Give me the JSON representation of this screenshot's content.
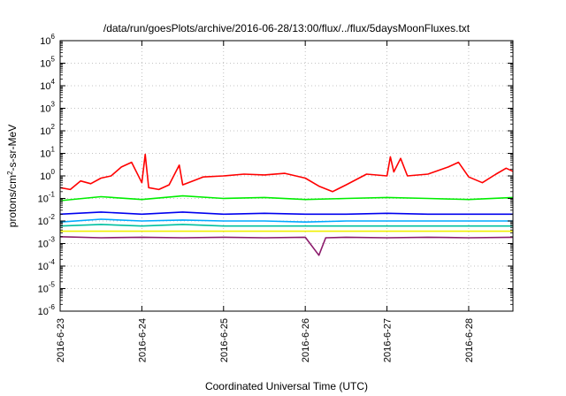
{
  "chart_data": {
    "type": "line",
    "title": "/data/run/goesPlots/archive/2016-06-28/13:00/flux/../flux/5daysMoonFluxes.txt",
    "xlabel": "Coordinated Universal Time (UTC)",
    "ylabel": {
      "prefix": "protons/cm",
      "sup": "2",
      "suffix": "-s-sr-MeV"
    },
    "yscale": "log",
    "ylim_exp": [
      -6,
      6
    ],
    "y_tick_labels": [
      {
        "base": "10",
        "exp": "-6"
      },
      {
        "base": "10",
        "exp": "-5"
      },
      {
        "base": "10",
        "exp": "-4"
      },
      {
        "base": "10",
        "exp": "-3"
      },
      {
        "base": "10",
        "exp": "-2"
      },
      {
        "base": "10",
        "exp": "-1"
      },
      {
        "base": "10",
        "exp": "0"
      },
      {
        "base": "10",
        "exp": "1"
      },
      {
        "base": "10",
        "exp": "2"
      },
      {
        "base": "10",
        "exp": "3"
      },
      {
        "base": "10",
        "exp": "4"
      },
      {
        "base": "10",
        "exp": "5"
      },
      {
        "base": "10",
        "exp": "6"
      }
    ],
    "xlim": [
      "2016-06-23T00:00",
      "2016-06-28T13:00"
    ],
    "x_ticks": [
      "2016-6-23",
      "2016-6-24",
      "2016-6-25",
      "2016-6-26",
      "2016-6-27",
      "2016-6-28"
    ],
    "grid": true,
    "legend": "none",
    "series": [
      {
        "color": "#ff0000",
        "points": [
          [
            "2016-06-23T00:00",
            0.3
          ],
          [
            "2016-06-23T03:00",
            0.25
          ],
          [
            "2016-06-23T06:00",
            0.6
          ],
          [
            "2016-06-23T09:00",
            0.45
          ],
          [
            "2016-06-23T12:00",
            0.8
          ],
          [
            "2016-06-23T15:00",
            1.0
          ],
          [
            "2016-06-23T18:00",
            2.5
          ],
          [
            "2016-06-23T21:00",
            4.0
          ],
          [
            "2016-06-24T00:00",
            0.5
          ],
          [
            "2016-06-24T01:00",
            9.0
          ],
          [
            "2016-06-24T02:00",
            0.3
          ],
          [
            "2016-06-24T05:00",
            0.25
          ],
          [
            "2016-06-24T08:00",
            0.4
          ],
          [
            "2016-06-24T11:00",
            3.0
          ],
          [
            "2016-06-24T12:00",
            0.4
          ],
          [
            "2016-06-24T15:00",
            0.6
          ],
          [
            "2016-06-24T18:00",
            0.9
          ],
          [
            "2016-06-25T00:00",
            1.0
          ],
          [
            "2016-06-25T06:00",
            1.2
          ],
          [
            "2016-06-25T12:00",
            1.1
          ],
          [
            "2016-06-25T18:00",
            1.3
          ],
          [
            "2016-06-26T00:00",
            0.8
          ],
          [
            "2016-06-26T04:00",
            0.35
          ],
          [
            "2016-06-26T08:00",
            0.2
          ],
          [
            "2016-06-26T12:00",
            0.4
          ],
          [
            "2016-06-26T18:00",
            1.2
          ],
          [
            "2016-06-27T00:00",
            1.0
          ],
          [
            "2016-06-27T01:00",
            7.0
          ],
          [
            "2016-06-27T02:00",
            1.5
          ],
          [
            "2016-06-27T04:00",
            6.0
          ],
          [
            "2016-06-27T06:00",
            1.0
          ],
          [
            "2016-06-27T12:00",
            1.2
          ],
          [
            "2016-06-27T18:00",
            2.5
          ],
          [
            "2016-06-27T21:00",
            4.0
          ],
          [
            "2016-06-28T00:00",
            0.9
          ],
          [
            "2016-06-28T04:00",
            0.5
          ],
          [
            "2016-06-28T08:00",
            1.2
          ],
          [
            "2016-06-28T11:00",
            2.2
          ],
          [
            "2016-06-28T13:00",
            1.6
          ]
        ]
      },
      {
        "color": "#00ee00",
        "points": [
          [
            "2016-06-23T00:00",
            0.08
          ],
          [
            "2016-06-23T12:00",
            0.12
          ],
          [
            "2016-06-24T00:00",
            0.09
          ],
          [
            "2016-06-24T12:00",
            0.13
          ],
          [
            "2016-06-25T00:00",
            0.1
          ],
          [
            "2016-06-25T12:00",
            0.11
          ],
          [
            "2016-06-26T00:00",
            0.09
          ],
          [
            "2016-06-26T12:00",
            0.1
          ],
          [
            "2016-06-27T00:00",
            0.11
          ],
          [
            "2016-06-27T12:00",
            0.1
          ],
          [
            "2016-06-28T00:00",
            0.09
          ],
          [
            "2016-06-28T13:00",
            0.11
          ]
        ]
      },
      {
        "color": "#0000ee",
        "points": [
          [
            "2016-06-23T00:00",
            0.02
          ],
          [
            "2016-06-23T12:00",
            0.025
          ],
          [
            "2016-06-24T00:00",
            0.02
          ],
          [
            "2016-06-24T12:00",
            0.025
          ],
          [
            "2016-06-25T00:00",
            0.02
          ],
          [
            "2016-06-25T12:00",
            0.022
          ],
          [
            "2016-06-26T00:00",
            0.02
          ],
          [
            "2016-06-26T12:00",
            0.02
          ],
          [
            "2016-06-27T00:00",
            0.022
          ],
          [
            "2016-06-27T12:00",
            0.02
          ],
          [
            "2016-06-28T00:00",
            0.02
          ],
          [
            "2016-06-28T13:00",
            0.02
          ]
        ]
      },
      {
        "color": "#00a8ff",
        "points": [
          [
            "2016-06-23T00:00",
            0.009
          ],
          [
            "2016-06-23T12:00",
            0.012
          ],
          [
            "2016-06-24T00:00",
            0.01
          ],
          [
            "2016-06-24T12:00",
            0.011
          ],
          [
            "2016-06-25T00:00",
            0.01
          ],
          [
            "2016-06-25T12:00",
            0.01
          ],
          [
            "2016-06-26T00:00",
            0.009
          ],
          [
            "2016-06-26T12:00",
            0.01
          ],
          [
            "2016-06-27T00:00",
            0.01
          ],
          [
            "2016-06-27T12:00",
            0.01
          ],
          [
            "2016-06-28T00:00",
            0.01
          ],
          [
            "2016-06-28T13:00",
            0.01
          ]
        ]
      },
      {
        "color": "#00c0a0",
        "points": [
          [
            "2016-06-23T00:00",
            0.006
          ],
          [
            "2016-06-23T12:00",
            0.007
          ],
          [
            "2016-06-24T00:00",
            0.006
          ],
          [
            "2016-06-24T12:00",
            0.007
          ],
          [
            "2016-06-25T00:00",
            0.006
          ],
          [
            "2016-06-25T12:00",
            0.006
          ],
          [
            "2016-06-26T00:00",
            0.006
          ],
          [
            "2016-06-26T12:00",
            0.006
          ],
          [
            "2016-06-27T00:00",
            0.006
          ],
          [
            "2016-06-27T12:00",
            0.006
          ],
          [
            "2016-06-28T00:00",
            0.006
          ],
          [
            "2016-06-28T13:00",
            0.006
          ]
        ]
      },
      {
        "color": "#f0f000",
        "points": [
          [
            "2016-06-23T00:00",
            0.0035
          ],
          [
            "2016-06-24T00:00",
            0.0035
          ],
          [
            "2016-06-25T00:00",
            0.0035
          ],
          [
            "2016-06-26T00:00",
            0.0035
          ],
          [
            "2016-06-27T00:00",
            0.0035
          ],
          [
            "2016-06-28T00:00",
            0.0035
          ],
          [
            "2016-06-28T13:00",
            0.0035
          ]
        ]
      },
      {
        "color": "#8b1a6b",
        "points": [
          [
            "2016-06-23T00:00",
            0.002
          ],
          [
            "2016-06-23T12:00",
            0.0018
          ],
          [
            "2016-06-24T00:00",
            0.0019
          ],
          [
            "2016-06-24T12:00",
            0.0018
          ],
          [
            "2016-06-25T00:00",
            0.0019
          ],
          [
            "2016-06-25T12:00",
            0.0018
          ],
          [
            "2016-06-26T00:00",
            0.0019
          ],
          [
            "2016-06-26T04:00",
            0.0003
          ],
          [
            "2016-06-26T06:00",
            0.0018
          ],
          [
            "2016-06-26T12:00",
            0.0019
          ],
          [
            "2016-06-27T00:00",
            0.0018
          ],
          [
            "2016-06-27T12:00",
            0.0019
          ],
          [
            "2016-06-28T00:00",
            0.0018
          ],
          [
            "2016-06-28T13:00",
            0.0019
          ]
        ]
      }
    ]
  }
}
